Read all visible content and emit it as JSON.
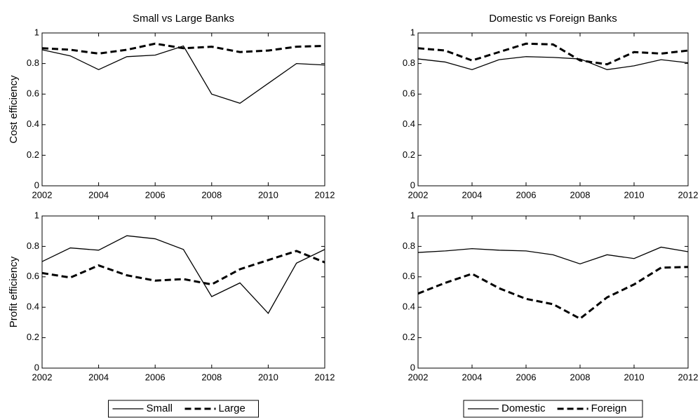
{
  "chart_data": [
    {
      "type": "line",
      "title": "Small vs Large Banks",
      "ylabel": "Cost efficiency",
      "x": [
        2002,
        2003,
        2004,
        2005,
        2006,
        2007,
        2008,
        2009,
        2010,
        2011,
        2012
      ],
      "series": [
        {
          "color": "#000000",
          "dashed": false,
          "values": [
            0.89,
            0.85,
            0.76,
            0.845,
            0.855,
            0.915,
            0.6,
            0.54,
            0.67,
            0.8,
            0.79
          ]
        },
        {
          "color": "#000000",
          "dashed": true,
          "values": [
            0.9,
            0.89,
            0.865,
            0.89,
            0.93,
            0.9,
            0.91,
            0.875,
            0.885,
            0.91,
            0.915
          ]
        }
      ],
      "xlim": [
        2002,
        2012
      ],
      "xticks": [
        2002,
        2004,
        2006,
        2008,
        2010,
        2012
      ],
      "ylim": [
        0,
        1
      ],
      "yticks": [
        0,
        0.2,
        0.4,
        0.6,
        0.8,
        1
      ],
      "grid": false
    },
    {
      "type": "line",
      "title": "Domestic vs Foreign Banks",
      "x": [
        2002,
        2003,
        2004,
        2005,
        2006,
        2007,
        2008,
        2009,
        2010,
        2011,
        2012
      ],
      "series": [
        {
          "color": "#000000",
          "dashed": false,
          "values": [
            0.83,
            0.81,
            0.76,
            0.825,
            0.845,
            0.84,
            0.83,
            0.76,
            0.785,
            0.825,
            0.805
          ]
        },
        {
          "color": "#000000",
          "dashed": true,
          "values": [
            0.9,
            0.885,
            0.82,
            0.875,
            0.93,
            0.925,
            0.82,
            0.795,
            0.875,
            0.865,
            0.885
          ]
        }
      ],
      "xlim": [
        2002,
        2012
      ],
      "xticks": [
        2002,
        2004,
        2006,
        2008,
        2010,
        2012
      ],
      "ylim": [
        0,
        1
      ],
      "yticks": [
        0,
        0.2,
        0.4,
        0.6,
        0.8,
        1
      ],
      "grid": false
    },
    {
      "type": "line",
      "ylabel": "Profit efficiency",
      "x": [
        2002,
        2003,
        2004,
        2005,
        2006,
        2007,
        2008,
        2009,
        2010,
        2011,
        2012
      ],
      "series": [
        {
          "name": "Small",
          "color": "#000000",
          "dashed": false,
          "values": [
            0.7,
            0.79,
            0.775,
            0.87,
            0.85,
            0.78,
            0.47,
            0.56,
            0.36,
            0.69,
            0.78
          ]
        },
        {
          "name": "Large",
          "color": "#000000",
          "dashed": true,
          "values": [
            0.625,
            0.595,
            0.675,
            0.61,
            0.575,
            0.585,
            0.55,
            0.65,
            0.71,
            0.77,
            0.695
          ]
        }
      ],
      "xlim": [
        2002,
        2012
      ],
      "xticks": [
        2002,
        2004,
        2006,
        2008,
        2010,
        2012
      ],
      "ylim": [
        0,
        1
      ],
      "yticks": [
        0,
        0.2,
        0.4,
        0.6,
        0.8,
        1
      ],
      "grid": false,
      "legend": "below"
    },
    {
      "type": "line",
      "x": [
        2002,
        2003,
        2004,
        2005,
        2006,
        2007,
        2008,
        2009,
        2010,
        2011,
        2012
      ],
      "series": [
        {
          "name": "Domestic",
          "color": "#000000",
          "dashed": false,
          "values": [
            0.76,
            0.77,
            0.785,
            0.775,
            0.77,
            0.745,
            0.685,
            0.745,
            0.72,
            0.795,
            0.765
          ]
        },
        {
          "name": "Foreign",
          "color": "#000000",
          "dashed": true,
          "values": [
            0.49,
            0.56,
            0.62,
            0.525,
            0.455,
            0.42,
            0.325,
            0.465,
            0.55,
            0.66,
            0.665
          ]
        }
      ],
      "xlim": [
        2002,
        2012
      ],
      "xticks": [
        2002,
        2004,
        2006,
        2008,
        2010,
        2012
      ],
      "ylim": [
        0,
        1
      ],
      "yticks": [
        0,
        0.2,
        0.4,
        0.6,
        0.8,
        1
      ],
      "grid": false,
      "legend": "below"
    }
  ]
}
